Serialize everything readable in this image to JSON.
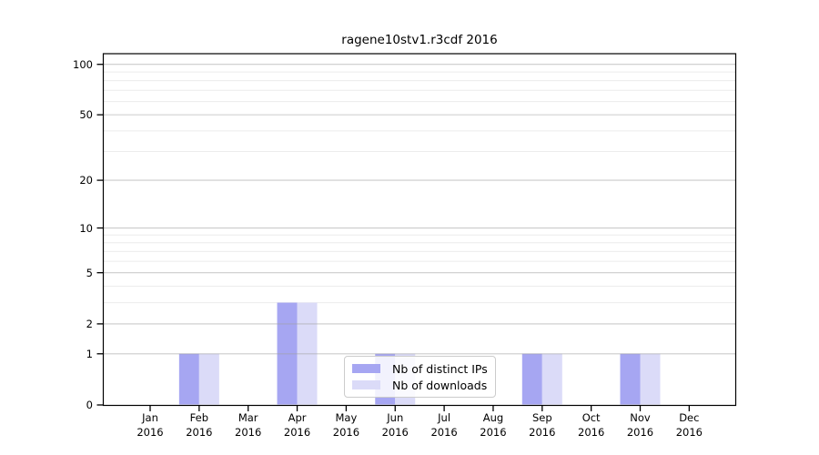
{
  "chart_data": {
    "type": "bar",
    "title": "ragene10stv1.r3cdf 2016",
    "categories": [
      "Jan",
      "Feb",
      "Mar",
      "Apr",
      "May",
      "Jun",
      "Jul",
      "Aug",
      "Sep",
      "Oct",
      "Nov",
      "Dec"
    ],
    "year": "2016",
    "series": [
      {
        "name": "Nb of distinct IPs",
        "color": "#a6a6f2",
        "values": [
          0,
          1,
          0,
          3,
          0,
          1,
          0,
          0,
          1,
          0,
          1,
          0
        ]
      },
      {
        "name": "Nb of downloads",
        "color": "#dbdbf8",
        "values": [
          0,
          1,
          0,
          3,
          0,
          1,
          0,
          0,
          1,
          0,
          1,
          0
        ]
      }
    ],
    "yscale": "log1p",
    "yticks": [
      0,
      1,
      2,
      5,
      10,
      20,
      50,
      100
    ],
    "minor_gridlines": [
      3,
      4,
      6,
      7,
      8,
      9,
      30,
      40,
      60,
      70,
      80,
      90
    ],
    "ylim": [
      0,
      116
    ],
    "grid": true,
    "legend_position": "inside-bottom-center",
    "colors": {
      "major_grid": "rgba(160,160,160,0.55)",
      "minor_grid": "#ececec",
      "axis": "#000000",
      "legend_border": "#cccccc",
      "background": "#ffffff"
    }
  }
}
